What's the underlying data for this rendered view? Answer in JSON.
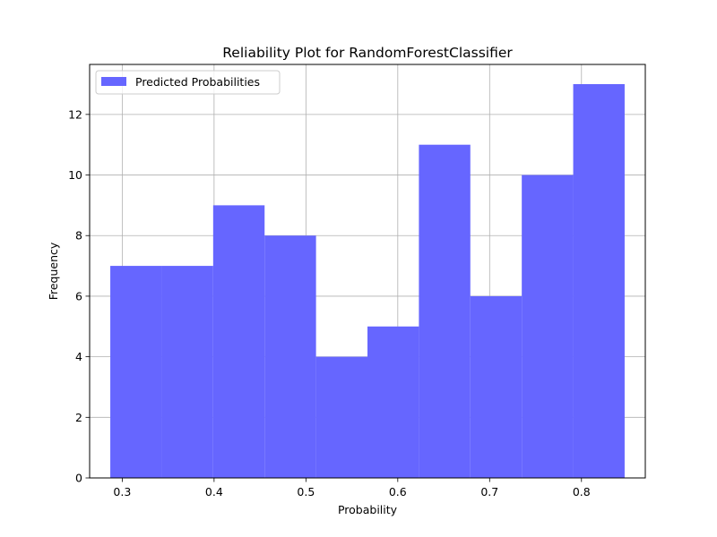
{
  "chart_data": {
    "type": "bar",
    "subtype": "histogram",
    "title": "Reliability Plot for RandomForestClassifier",
    "xlabel": "Probability",
    "ylabel": "Frequency",
    "bin_edges": [
      0.287,
      0.343,
      0.399,
      0.455,
      0.511,
      0.567,
      0.623,
      0.679,
      0.735,
      0.791,
      0.847
    ],
    "series": [
      {
        "name": "Predicted Probabilities",
        "values": [
          7,
          7,
          9,
          8,
          4,
          5,
          11,
          6,
          10,
          13
        ],
        "color": "#6666ff"
      }
    ],
    "xlim": [
      0.2645,
      0.8695
    ],
    "ylim": [
      0,
      13.65
    ],
    "xticks": [
      0.3,
      0.4,
      0.5,
      0.6,
      0.7,
      0.8
    ],
    "xtick_labels": [
      "0.3",
      "0.4",
      "0.5",
      "0.6",
      "0.7",
      "0.8"
    ],
    "yticks": [
      0,
      2,
      4,
      6,
      8,
      10,
      12
    ],
    "ytick_labels": [
      "0",
      "2",
      "4",
      "6",
      "8",
      "10",
      "12"
    ],
    "grid": true,
    "legend": "top-left"
  }
}
